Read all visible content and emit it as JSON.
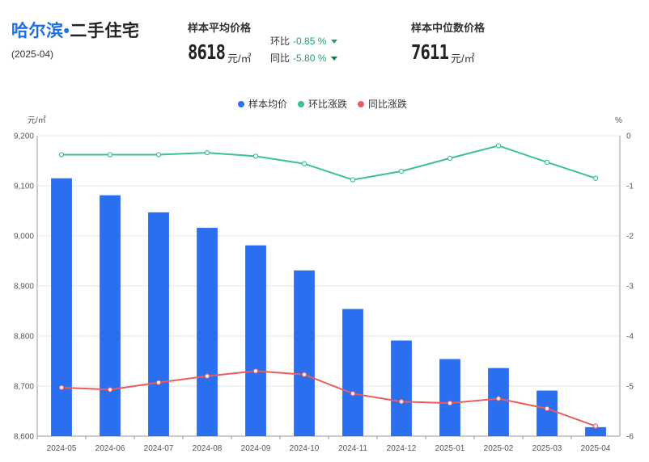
{
  "header": {
    "city": "哈尔滨",
    "dot": "•",
    "type": "二手住宅",
    "period": "(2025-04)"
  },
  "avg": {
    "label": "样本平均价格",
    "value": "8618",
    "unit": "元/㎡",
    "mom_label": "环比",
    "mom_value": "-0.85 %",
    "yoy_label": "同比",
    "yoy_value": "-5.80 %"
  },
  "median": {
    "label": "样本中位数价格",
    "value": "7611",
    "unit": "元/㎡"
  },
  "colors": {
    "bar": "#2a6ff0",
    "mom": "#3cc28a",
    "yoy": "#ec5c5c"
  },
  "chart_data": {
    "type": "bar",
    "categories": [
      "2024-05",
      "2024-06",
      "2024-07",
      "2024-08",
      "2024-09",
      "2024-10",
      "2024-11",
      "2024-12",
      "2025-01",
      "2025-02",
      "2025-03",
      "2025-04"
    ],
    "series": [
      {
        "name": "样本均价",
        "axis": "left",
        "type": "bar",
        "values": [
          9115,
          9081,
          9047,
          9016,
          8981,
          8931,
          8854,
          8791,
          8754,
          8736,
          8691,
          8618
        ]
      },
      {
        "name": "环比涨跌",
        "axis": "right",
        "type": "line",
        "values": [
          -0.38,
          -0.38,
          -0.38,
          -0.34,
          -0.41,
          -0.56,
          -0.88,
          -0.71,
          -0.45,
          -0.2,
          -0.53,
          -0.85
        ]
      },
      {
        "name": "同比涨跌",
        "axis": "right",
        "type": "line",
        "values": [
          -5.03,
          -5.07,
          -4.93,
          -4.8,
          -4.7,
          -4.77,
          -5.15,
          -5.31,
          -5.34,
          -5.25,
          -5.45,
          -5.8
        ]
      }
    ],
    "left_axis": {
      "unit": "元/㎡",
      "ylim": [
        8600,
        9200
      ],
      "ticks": [
        "8,600",
        "8,700",
        "8,800",
        "8,900",
        "9,000",
        "9,100",
        "9,200"
      ]
    },
    "right_axis": {
      "unit": "%",
      "ylim": [
        -6,
        0
      ],
      "ticks": [
        "-6",
        "-5",
        "-4",
        "-3",
        "-2",
        "-1",
        "0"
      ]
    },
    "legend": [
      "样本均价",
      "环比涨跌",
      "同比涨跌"
    ],
    "legend_position": "top-center",
    "grid": true
  }
}
